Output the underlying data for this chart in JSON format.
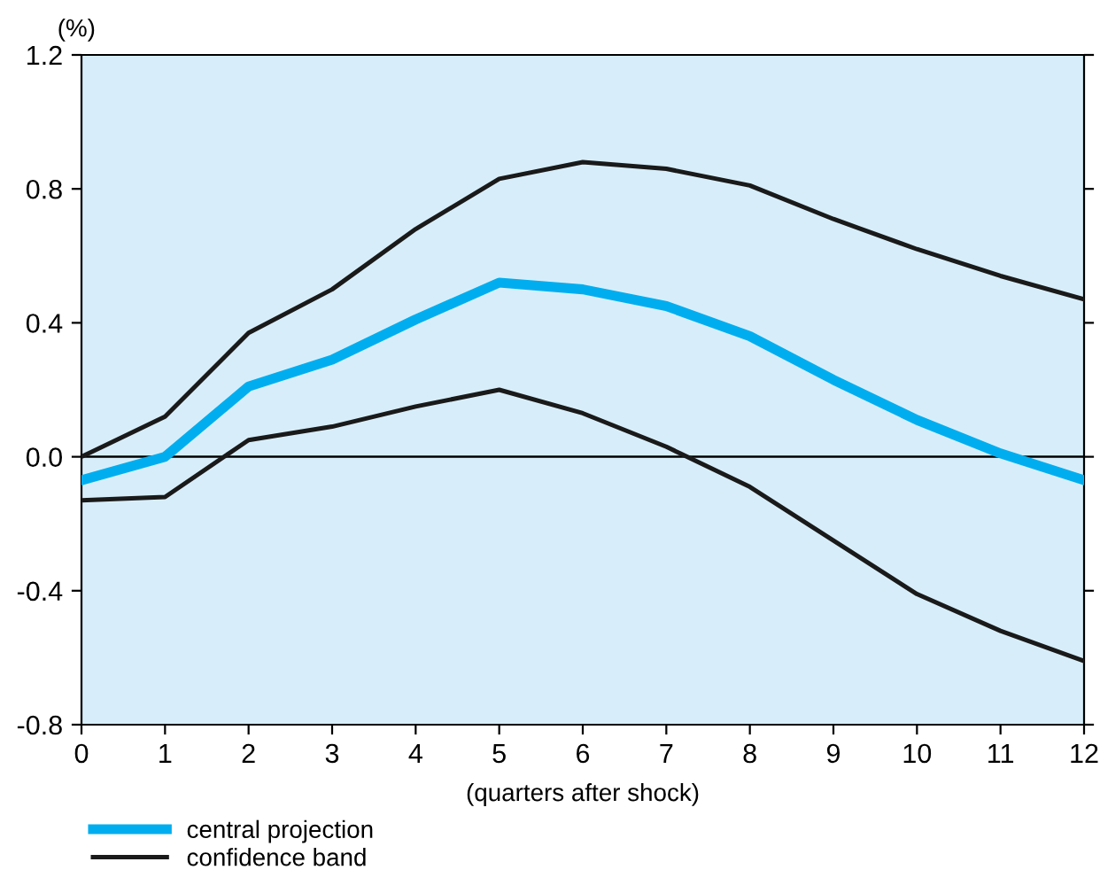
{
  "chart_data": {
    "type": "line",
    "ylabel": "(%)",
    "xlabel": "(quarters after shock)",
    "x": [
      0,
      1,
      2,
      3,
      4,
      5,
      6,
      7,
      8,
      9,
      10,
      11,
      12
    ],
    "series": [
      {
        "name": "central projection",
        "color": "#00aeef",
        "values": [
          -0.07,
          0.0,
          0.21,
          0.29,
          0.41,
          0.52,
          0.5,
          0.45,
          0.36,
          0.23,
          0.11,
          0.01,
          -0.07
        ]
      },
      {
        "name": "confidence band",
        "color": "#1a1a1a",
        "values": [
          0.0,
          0.12,
          0.37,
          0.5,
          0.68,
          0.83,
          0.88,
          0.86,
          0.81,
          0.71,
          0.62,
          0.54,
          0.47
        ]
      },
      {
        "color": "#1a1a1a",
        "values": [
          -0.13,
          -0.12,
          0.05,
          0.09,
          0.15,
          0.2,
          0.13,
          0.03,
          -0.09,
          -0.25,
          -0.41,
          -0.52,
          -0.61
        ]
      }
    ],
    "xlim": [
      0,
      12
    ],
    "xticks": [
      0,
      1,
      2,
      3,
      4,
      5,
      6,
      7,
      8,
      9,
      10,
      11,
      12
    ],
    "ylim": [
      -0.8,
      1.2
    ],
    "yticks": [
      {
        "value": -0.8,
        "label": "-0.8"
      },
      {
        "value": -0.4,
        "label": "-0.4"
      },
      {
        "value": 0,
        "label": "0.0"
      },
      {
        "value": 0.4,
        "label": "0.4"
      },
      {
        "value": 0.8,
        "label": "0.8"
      },
      {
        "value": 1.2,
        "label": "1.2"
      }
    ],
    "ref_lines": [
      {
        "axis": "y",
        "value": 0,
        "color": "#000000"
      }
    ],
    "legend": "bottom left",
    "grid": false,
    "marker": "none",
    "line_style": "solid"
  }
}
